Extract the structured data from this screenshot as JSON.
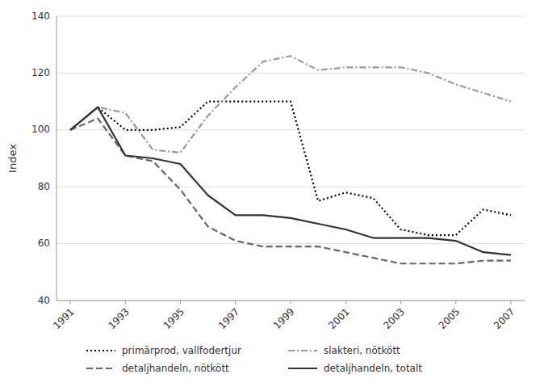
{
  "chart_data": {
    "type": "line",
    "y_label": "Index",
    "x": [
      1991,
      1992,
      1993,
      1994,
      1995,
      1996,
      1997,
      1998,
      1999,
      2000,
      2001,
      2002,
      2003,
      2004,
      2005,
      2006,
      2007
    ],
    "series": [
      {
        "name": "primärprod, vallfodertjur",
        "color": "#000000",
        "line_style": "dotted",
        "values": [
          100,
          108,
          100,
          100,
          101,
          110,
          110,
          110,
          110,
          75,
          78,
          76,
          65,
          63,
          63,
          72,
          70
        ]
      },
      {
        "name": "slakteri, nötkött",
        "color": "#999999",
        "line_style": "dashdot",
        "values": [
          100,
          108,
          106,
          93,
          92,
          105,
          115,
          124,
          126,
          121,
          122,
          122,
          122,
          120,
          116,
          113,
          110
        ]
      },
      {
        "name": "detaljhandeln, nötkött",
        "color": "#666666",
        "line_style": "dashed",
        "values": [
          100,
          104,
          91,
          89,
          79,
          66,
          61,
          59,
          59,
          59,
          57,
          55,
          53,
          53,
          53,
          54,
          54
        ]
      },
      {
        "name": "detaljhandeln, totalt",
        "color": "#333333",
        "line_style": "solid",
        "values": [
          100,
          108,
          91,
          90,
          88,
          77,
          70,
          70,
          69,
          67,
          65,
          62,
          62,
          62,
          61,
          57,
          56
        ]
      }
    ],
    "xlim": [
      1990.5,
      2007.5
    ],
    "xticks": [
      1991,
      1993,
      1995,
      1997,
      1999,
      2001,
      2003,
      2005,
      2007
    ],
    "ylim": [
      40,
      140
    ],
    "yticks": [
      40,
      60,
      80,
      100,
      120,
      140
    ],
    "grid": true,
    "legend": "bottom"
  }
}
